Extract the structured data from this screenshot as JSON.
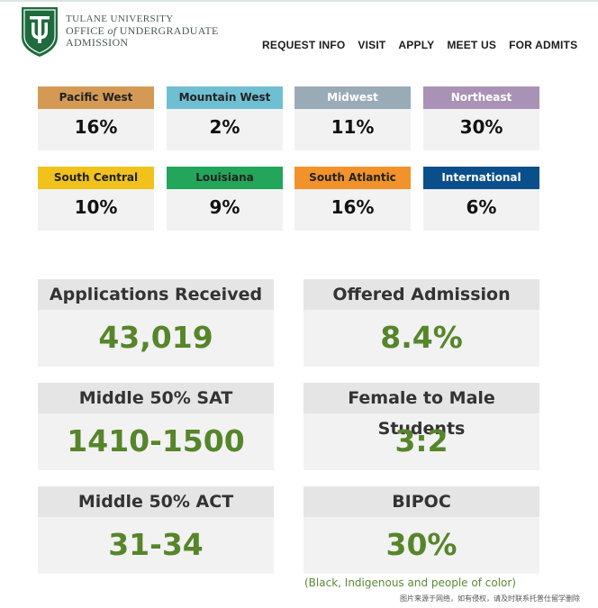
{
  "header": {
    "logo_text": "TU",
    "brand_line1": "TULANE UNIVERSITY",
    "brand_line2_pre": "OFFICE ",
    "brand_line2_of": "of",
    "brand_line2_post": " UNDERGRADUATE",
    "brand_line3": "ADMISSION",
    "nav": [
      "REQUEST INFO",
      "VISIT",
      "APPLY",
      "MEET US",
      "FOR ADMITS"
    ],
    "brand_color": "#1f6b3e"
  },
  "regions": [
    {
      "label": "Pacific West",
      "value": "16%",
      "color": "#d49a54"
    },
    {
      "label": "Mountain West",
      "value": "2%",
      "color": "#6fbfd3"
    },
    {
      "label": "Midwest",
      "value": "11%",
      "color": "#9aabb8"
    },
    {
      "label": "Northeast",
      "value": "30%",
      "color": "#a992b6"
    },
    {
      "label": "South Central",
      "value": "10%",
      "color": "#f0c21b"
    },
    {
      "label": "Louisiana",
      "value": "9%",
      "color": "#23a65a"
    },
    {
      "label": "South Atlantic",
      "value": "16%",
      "color": "#f2922a"
    },
    {
      "label": "International",
      "value": "6%",
      "color": "#0a4f8c"
    }
  ],
  "stats": [
    {
      "label": "Applications Received",
      "value": "43,019"
    },
    {
      "label": "Offered Admission",
      "value": "8.4%"
    },
    {
      "label": "Middle 50% SAT",
      "value": "1410-1500"
    },
    {
      "label": "Female to Male Students",
      "value": "3:2"
    },
    {
      "label": "Middle 50% ACT",
      "value": "31-34"
    },
    {
      "label": "BIPOC",
      "value": "30%"
    }
  ],
  "bipoc_note": "(Black, Indigenous and people of color)",
  "watermark": "图片来源于网络，如有侵权，请及时联系托普仕留学删除"
}
